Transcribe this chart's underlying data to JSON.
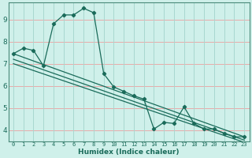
{
  "xlabel": "Humidex (Indice chaleur)",
  "ylabel": "",
  "bg_color": "#cff0ea",
  "grid_color_h": "#e8aaaa",
  "grid_color_v": "#a8d8d0",
  "line_color": "#1a6b5a",
  "spine_color": "#4a8a7a",
  "xlim": [
    -0.5,
    23.5
  ],
  "ylim": [
    3.5,
    9.75
  ],
  "yticks": [
    4,
    5,
    6,
    7,
    8,
    9
  ],
  "xticks": [
    0,
    1,
    2,
    3,
    4,
    5,
    6,
    7,
    8,
    9,
    10,
    11,
    12,
    13,
    14,
    15,
    16,
    17,
    18,
    19,
    20,
    21,
    22,
    23
  ],
  "line1_x": [
    0,
    1,
    2,
    3,
    4,
    5,
    6,
    7,
    8,
    9,
    10,
    11,
    12,
    13,
    14,
    15,
    16,
    17,
    18,
    19,
    20,
    21,
    22,
    23
  ],
  "line1_y": [
    7.45,
    7.7,
    7.6,
    6.9,
    8.8,
    9.2,
    9.2,
    9.5,
    9.3,
    6.55,
    5.95,
    5.75,
    5.55,
    5.4,
    4.05,
    4.35,
    4.3,
    5.05,
    4.3,
    4.05,
    4.05,
    3.85,
    3.7,
    3.7
  ],
  "line2_x": [
    0,
    23
  ],
  "line2_y": [
    7.45,
    3.7
  ],
  "line3_x": [
    0,
    23
  ],
  "line3_y": [
    7.2,
    3.55
  ],
  "line4_x": [
    0,
    23
  ],
  "line4_y": [
    7.0,
    3.45
  ]
}
